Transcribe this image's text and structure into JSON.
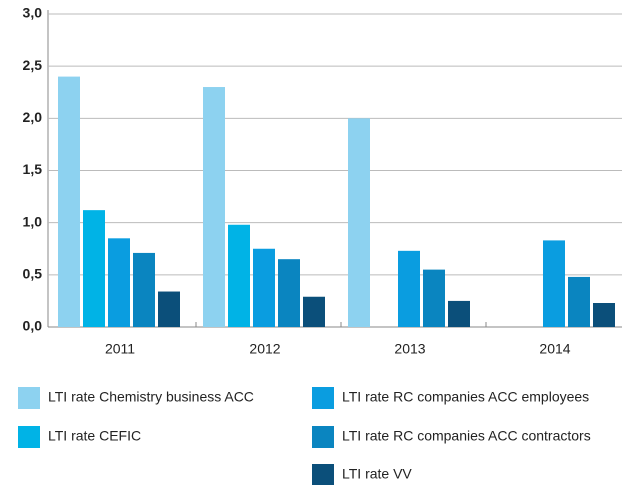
{
  "chart_data": {
    "type": "bar",
    "categories": [
      "2011",
      "2012",
      "2013",
      "2014"
    ],
    "series": [
      {
        "name": "LTI rate Chemistry business ACC",
        "color": "#8dd2f0",
        "values": [
          2.4,
          2.3,
          2.0,
          null
        ]
      },
      {
        "name": "LTI rate CEFIC",
        "color": "#00b3e6",
        "values": [
          1.12,
          0.98,
          null,
          null
        ]
      },
      {
        "name": "LTI rate RC companies ACC employees",
        "color": "#0a9de0",
        "values": [
          0.85,
          0.75,
          0.73,
          0.83
        ]
      },
      {
        "name": "LTI rate RC companies ACC contractors",
        "color": "#0a85c0",
        "values": [
          0.71,
          0.65,
          0.55,
          0.48
        ]
      },
      {
        "name": "LTI rate VV",
        "color": "#0b4f7a",
        "values": [
          0.34,
          0.29,
          0.25,
          0.23
        ]
      }
    ],
    "ylim": [
      0,
      3.0
    ],
    "yticks": [
      {
        "value": 0,
        "label": "0,0"
      },
      {
        "value": 0.5,
        "label": "0,5"
      },
      {
        "value": 1.0,
        "label": "1,0"
      },
      {
        "value": 1.5,
        "label": "1,5"
      },
      {
        "value": 2.0,
        "label": "2,0"
      },
      {
        "value": 2.5,
        "label": "2,5"
      },
      {
        "value": 3.0,
        "label": "3,0"
      }
    ],
    "grid": true
  }
}
